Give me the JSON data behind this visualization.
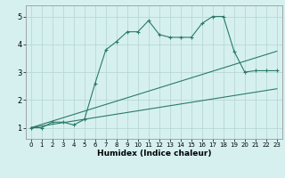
{
  "xlabel": "Humidex (Indice chaleur)",
  "bg_color": "#d6f0f0",
  "line_color": "#2a7a6a",
  "grid_color": "#b8d8d8",
  "xlim": [
    -0.5,
    23.5
  ],
  "ylim": [
    0.6,
    5.4
  ],
  "xticks": [
    0,
    1,
    2,
    3,
    4,
    5,
    6,
    7,
    8,
    9,
    10,
    11,
    12,
    13,
    14,
    15,
    16,
    17,
    18,
    19,
    20,
    21,
    22,
    23
  ],
  "yticks": [
    1,
    2,
    3,
    4,
    5
  ],
  "line1_x": [
    0,
    1,
    2,
    3,
    4,
    5,
    6,
    7,
    8,
    9,
    10,
    11,
    12,
    13,
    14,
    15,
    16,
    17,
    18,
    19,
    20,
    21,
    22,
    23
  ],
  "line1_y": [
    1.0,
    1.0,
    1.2,
    1.2,
    1.1,
    1.3,
    2.6,
    3.8,
    4.1,
    4.45,
    4.45,
    4.85,
    4.35,
    4.25,
    4.25,
    4.25,
    4.75,
    5.0,
    5.0,
    3.75,
    3.0,
    3.05,
    3.05,
    3.05
  ],
  "line2_x": [
    0,
    23
  ],
  "line2_y": [
    1.0,
    3.75
  ],
  "line3_x": [
    0,
    23
  ],
  "line3_y": [
    1.0,
    2.4
  ],
  "marker": "+"
}
